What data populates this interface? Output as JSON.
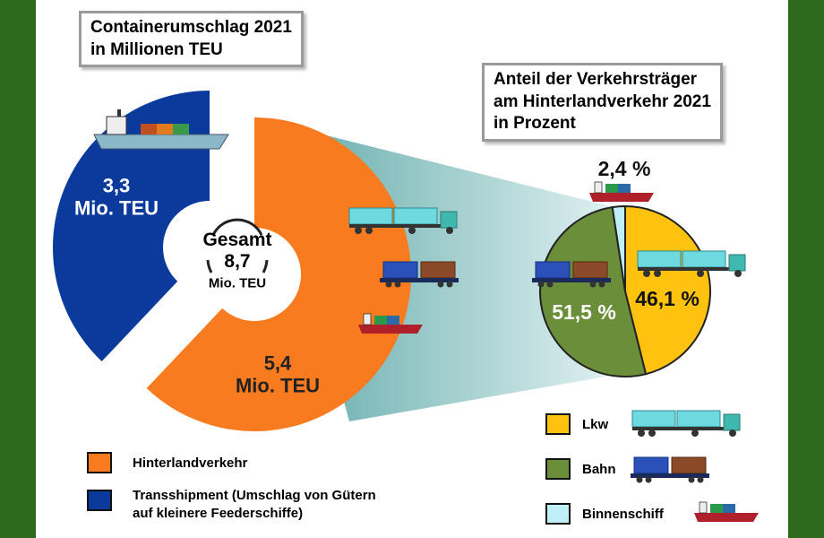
{
  "chart_data": [
    {
      "type": "donut",
      "title": "Containerumschlag 2021\nin Millionen TEU",
      "categories": [
        "Hinterlandverkehr",
        "Transshipment (Umschlag von Gütern\nauf kleinere Feederschiffe)"
      ],
      "values": [
        5.4,
        3.3
      ],
      "value_labels": [
        "5,4\nMio. TEU",
        "3,3\nMio. TEU"
      ],
      "colors": [
        "#f97b1f",
        "#0a3a9c"
      ],
      "center": {
        "label": "Gesamt",
        "value": 8.7,
        "value_label": "8,7",
        "unit": "Mio. TEU"
      }
    },
    {
      "type": "pie",
      "title": "Anteil der Verkehrsträger\nam Hinterlandverkehr 2021\nin Prozent",
      "categories": [
        "Lkw",
        "Bahn",
        "Binnenschiff"
      ],
      "values": [
        46.1,
        51.5,
        2.4
      ],
      "value_labels": [
        "46,1 %",
        "51,5 %",
        "2,4 %"
      ],
      "colors": [
        "#ffc20e",
        "#6b8e3a",
        "#bff0f8"
      ]
    }
  ]
}
